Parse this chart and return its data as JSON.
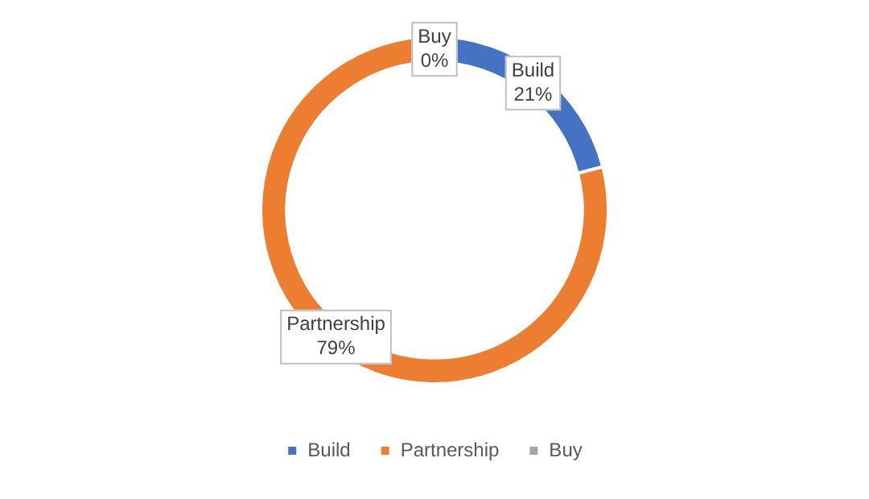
{
  "chart_data": {
    "type": "donut",
    "categories": [
      "Build",
      "Partnership",
      "Buy"
    ],
    "values": [
      21,
      79,
      0
    ],
    "colors": [
      "#4472c4",
      "#ed7d31",
      "#a5a5a5"
    ],
    "value_labels": [
      "21%",
      "79%",
      "0%"
    ],
    "legend": "bottom"
  }
}
